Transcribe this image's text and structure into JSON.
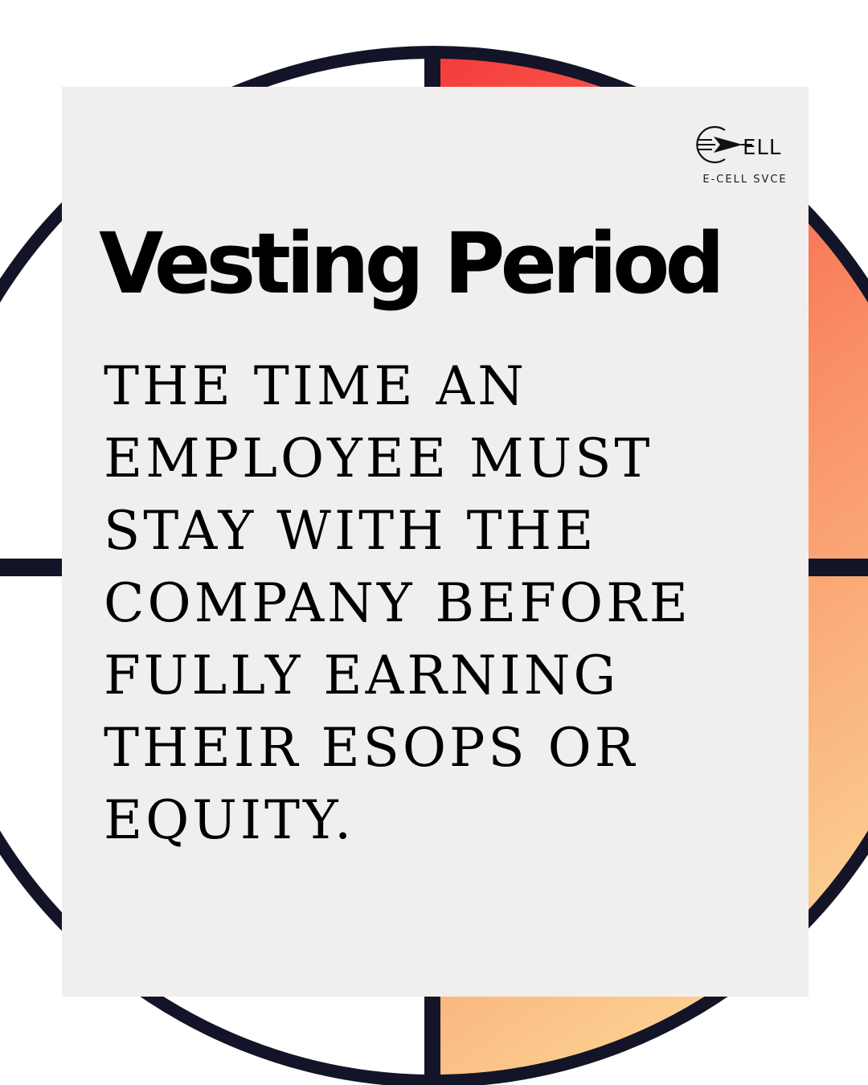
{
  "brand": {
    "logo_letters": "ELL",
    "logo_caption": "E-CELL SVCE"
  },
  "title": "Vesting Period",
  "definition": "THE TIME AN EMPLOYEE MUST STAY WITH THE COMPANY BEFORE FULLY EARNING THEIR ESOPS OR EQUITY.",
  "colors": {
    "card": "#f0efed",
    "ring": "#141428",
    "gradient_start": "#f53b3b",
    "gradient_mid": "#f98d64",
    "gradient_end": "#fbd091",
    "text": "#000000"
  }
}
